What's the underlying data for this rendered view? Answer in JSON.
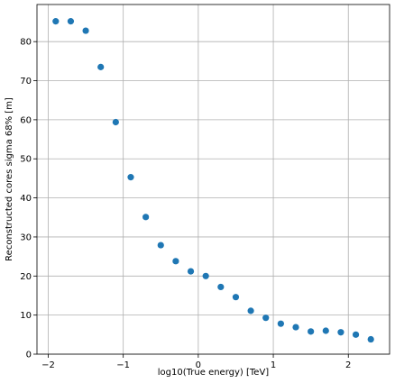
{
  "chart_data": {
    "type": "scatter",
    "xlabel": "log10(True energy) [TeV]",
    "ylabel": "Reconstructed cores sigma 68% [m]",
    "xlim": [
      -2.15,
      2.55
    ],
    "ylim": [
      0,
      89.5
    ],
    "xticks": [
      -2,
      -1,
      0,
      1,
      2
    ],
    "xtick_labels": [
      "−2",
      "−1",
      "0",
      "1",
      "2"
    ],
    "yticks": [
      0,
      10,
      20,
      30,
      40,
      50,
      60,
      70,
      80
    ],
    "ytick_labels": [
      "0",
      "10",
      "20",
      "30",
      "40",
      "50",
      "60",
      "70",
      "80"
    ],
    "grid": true,
    "marker_color": "#1f77b4",
    "x": [
      -1.9,
      -1.7,
      -1.5,
      -1.3,
      -1.1,
      -0.9,
      -0.7,
      -0.5,
      -0.3,
      -0.1,
      0.1,
      0.3,
      0.5,
      0.7,
      0.9,
      1.1,
      1.3,
      1.5,
      1.7,
      1.9,
      2.1,
      2.3
    ],
    "y": [
      85.2,
      85.2,
      82.8,
      73.5,
      59.4,
      45.3,
      35.1,
      27.9,
      23.8,
      21.2,
      20.0,
      17.2,
      14.6,
      11.1,
      9.3,
      7.8,
      6.9,
      5.8,
      6.0,
      5.6,
      5.0,
      3.8
    ]
  }
}
